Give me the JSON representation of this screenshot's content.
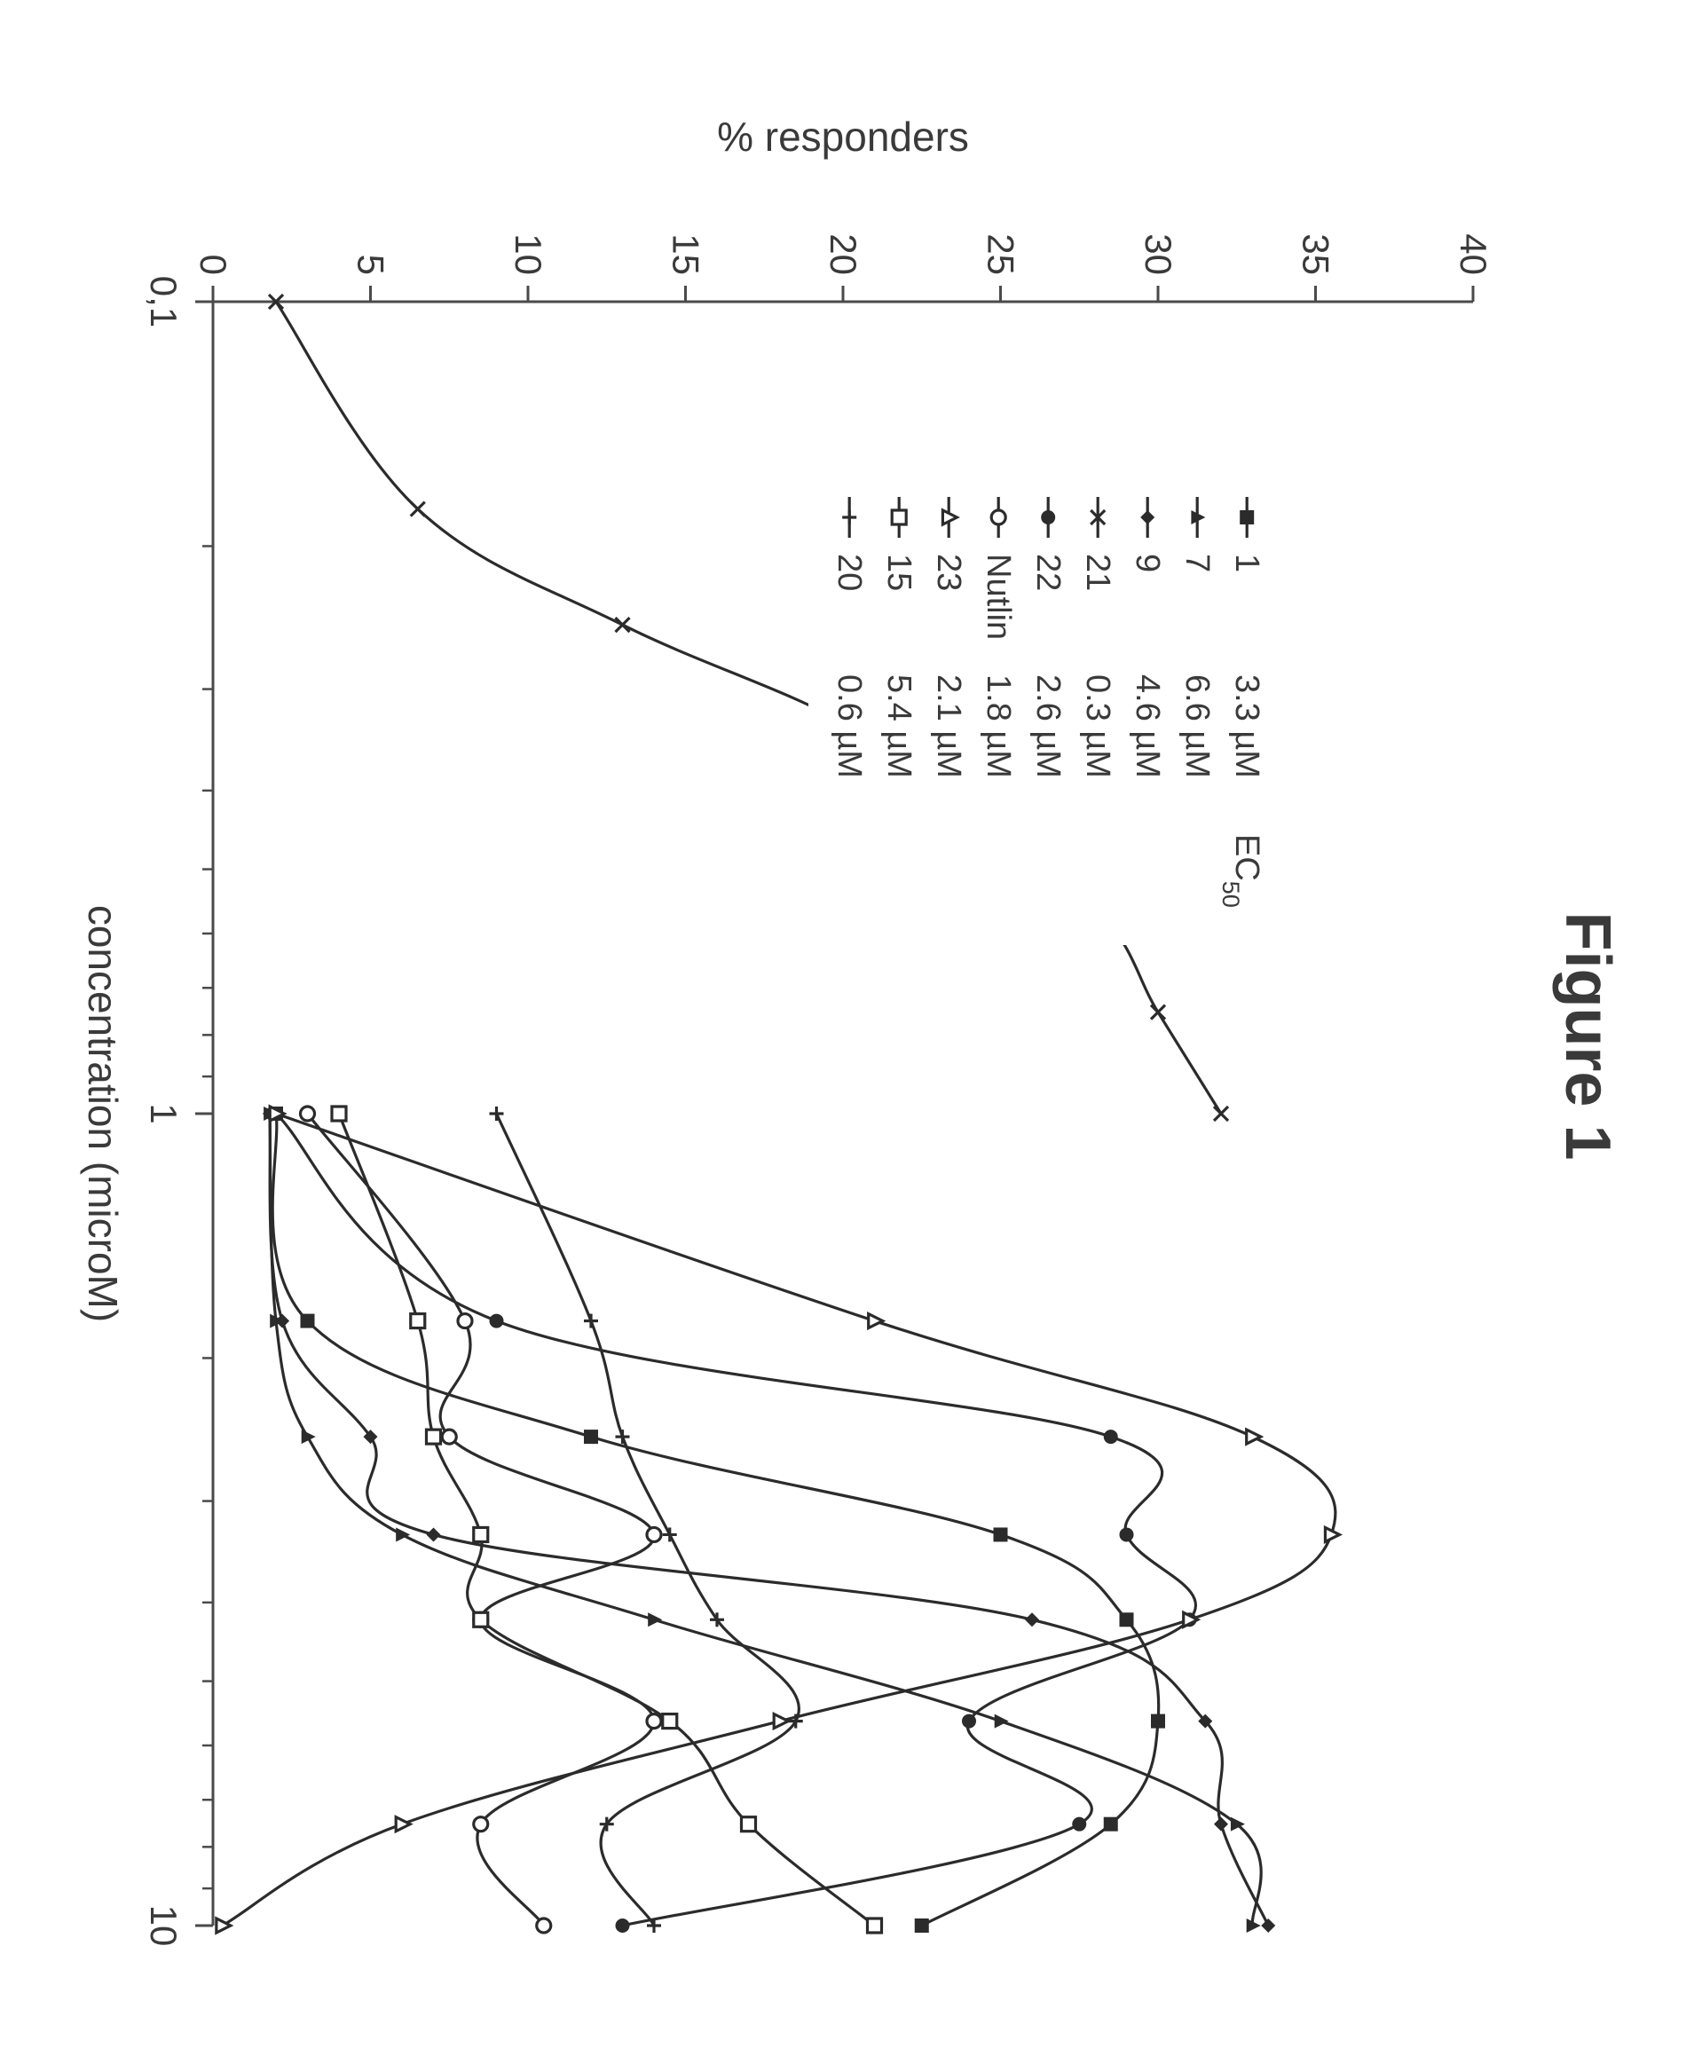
{
  "rotation_deg": 90,
  "figure": {
    "title": "Figure 1",
    "title_fontsize": 72,
    "title_fontweight": "bold",
    "xlabel": "concentration (microM)",
    "ylabel": "% responders",
    "label_fontsize": 46,
    "background_color": "#ffffff",
    "axis_color": "#4a4a4a",
    "tick_color": "#4a4a4a",
    "text_color": "#3a3a3a",
    "x_scale": "log",
    "xlim": [
      0.1,
      10
    ],
    "x_ticks": [
      0.1,
      1,
      10
    ],
    "x_tick_labels": [
      "0,1",
      "1",
      "10"
    ],
    "x_minor_ticks": [
      0.2,
      0.3,
      0.4,
      0.5,
      0.6,
      0.7,
      0.8,
      0.9,
      2,
      3,
      4,
      5,
      6,
      7,
      8,
      9
    ],
    "ylim": [
      0,
      40
    ],
    "y_ticks": [
      0,
      5,
      10,
      15,
      20,
      25,
      30,
      35,
      40
    ],
    "tick_fontsize": 42,
    "line_width": 3.2,
    "marker_size": 16,
    "marker_line_width": 3.2,
    "legend": {
      "box_stroke": "#4a4a4a",
      "box_fill": "#ffffff",
      "fontsize": 38,
      "title_ec50": "EC",
      "title_ec50_sub": "50",
      "columns": [
        "marker",
        "name",
        "ec50"
      ]
    },
    "series": [
      {
        "name": "1",
        "ec50": "3.3 µM",
        "marker": "square-filled",
        "color": "#2b2b2b",
        "x": [
          1,
          1.8,
          2.5,
          3.3,
          4.2,
          5.6,
          7.5,
          10
        ],
        "y": [
          2.0,
          3.0,
          12.0,
          25.0,
          29.0,
          30.0,
          28.5,
          22.5
        ]
      },
      {
        "name": "7",
        "ec50": "6.6 µM",
        "marker": "triangle-filled",
        "color": "#2b2b2b",
        "x": [
          1,
          1.8,
          2.5,
          3.3,
          4.2,
          5.6,
          7.5,
          10
        ],
        "y": [
          1.8,
          2.0,
          3.0,
          6.0,
          14.0,
          25.0,
          32.5,
          33.0
        ]
      },
      {
        "name": "9",
        "ec50": "4.6 µM",
        "marker": "diamond-filled",
        "color": "#2b2b2b",
        "x": [
          1,
          1.8,
          2.5,
          3.3,
          4.2,
          5.6,
          7.5,
          10
        ],
        "y": [
          1.8,
          2.2,
          5.0,
          7.0,
          26.0,
          31.5,
          32.0,
          33.5
        ]
      },
      {
        "name": "21",
        "ec50": "0.3 µM",
        "marker": "x",
        "color": "#2b2b2b",
        "x": [
          0.1,
          0.18,
          0.25,
          0.33,
          0.42,
          0.56,
          0.75,
          1.0
        ],
        "y": [
          2.0,
          6.5,
          13.0,
          20.0,
          23.0,
          28.0,
          30.0,
          32.0
        ]
      },
      {
        "name": "22",
        "ec50": "2.6 µM",
        "marker": "circle-filled",
        "color": "#2b2b2b",
        "x": [
          1,
          1.8,
          2.5,
          3.3,
          4.2,
          5.6,
          7.5,
          10
        ],
        "y": [
          2.0,
          9.0,
          28.5,
          29.0,
          31.0,
          24.0,
          27.5,
          13.0
        ]
      },
      {
        "name": "Nutlin",
        "ec50": "1.8 µM",
        "marker": "circle-open",
        "color": "#2b2b2b",
        "x": [
          1,
          1.8,
          2.5,
          3.3,
          4.2,
          5.6,
          7.5,
          10
        ],
        "y": [
          3.0,
          8.0,
          7.5,
          14.0,
          8.5,
          14.0,
          8.5,
          10.5
        ]
      },
      {
        "name": "23",
        "ec50": "2.1 µM",
        "marker": "triangle-open",
        "color": "#2b2b2b",
        "x": [
          1,
          1.8,
          2.5,
          3.3,
          4.2,
          5.6,
          7.5,
          10
        ],
        "y": [
          2.0,
          21.0,
          33.0,
          35.5,
          31.0,
          18.0,
          6.0,
          0.3
        ]
      },
      {
        "name": "15",
        "ec50": "5.4 µM",
        "marker": "square-open",
        "color": "#2b2b2b",
        "x": [
          1,
          1.8,
          2.5,
          3.3,
          4.2,
          5.6,
          7.5,
          10
        ],
        "y": [
          4.0,
          6.5,
          7.0,
          8.5,
          8.5,
          14.5,
          17.0,
          21.0
        ]
      },
      {
        "name": "20",
        "ec50": "0.6 µM",
        "marker": "plus",
        "color": "#2b2b2b",
        "x": [
          1,
          1.8,
          2.5,
          3.3,
          4.2,
          5.6,
          7.5,
          10
        ],
        "y": [
          9.0,
          12.0,
          13.0,
          14.5,
          16.0,
          18.5,
          12.5,
          14.0
        ]
      }
    ]
  }
}
